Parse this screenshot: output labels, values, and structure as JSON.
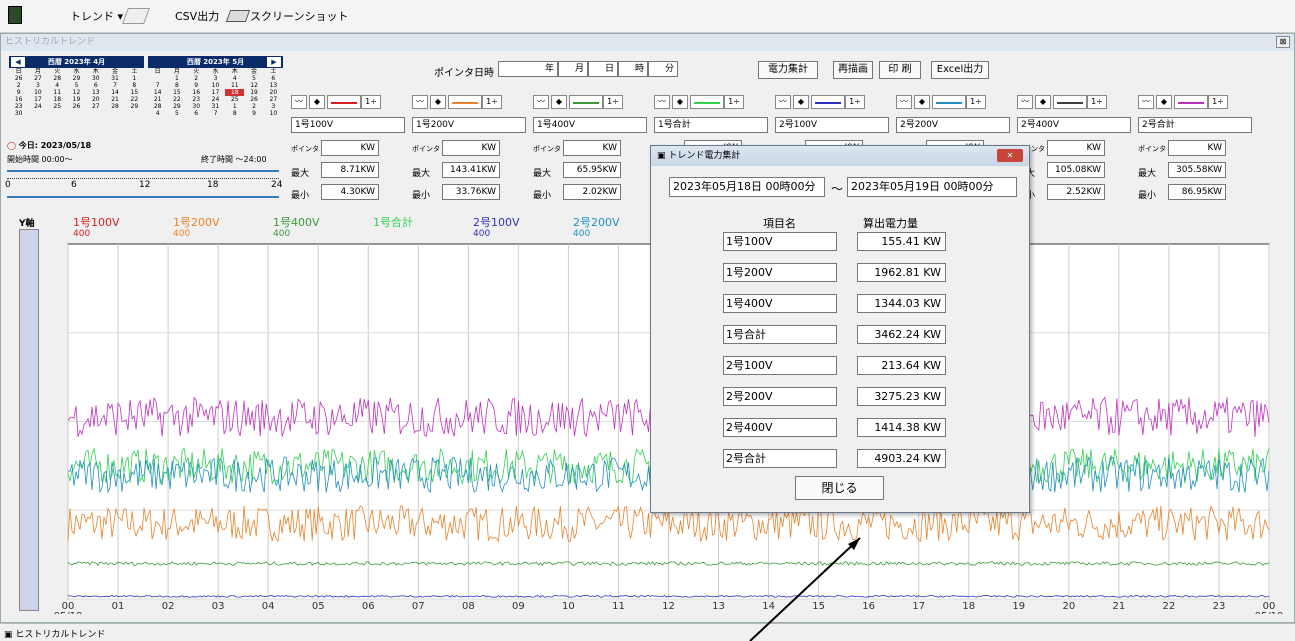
{
  "toolbar": {
    "trend": "トレンド ▾",
    "csv": "CSV出力",
    "screenshot": "スクリーンショット"
  },
  "window": {
    "title": "ヒストリカルトレンド",
    "close": "⊠"
  },
  "calendars": [
    {
      "title": "西暦 2023年 4月",
      "weekdays": [
        "日",
        "月",
        "火",
        "水",
        "木",
        "金",
        "土"
      ],
      "rows": [
        [
          "26",
          "27",
          "28",
          "29",
          "30",
          "31",
          "1"
        ],
        [
          "2",
          "3",
          "4",
          "5",
          "6",
          "7",
          "8"
        ],
        [
          "9",
          "10",
          "11",
          "12",
          "13",
          "14",
          "15"
        ],
        [
          "16",
          "17",
          "18",
          "19",
          "20",
          "21",
          "22"
        ],
        [
          "23",
          "24",
          "25",
          "26",
          "27",
          "28",
          "29"
        ],
        [
          "30",
          "",
          "",
          "",
          "",
          "",
          ""
        ]
      ]
    },
    {
      "title": "西暦 2023年 5月",
      "weekdays": [
        "日",
        "月",
        "火",
        "水",
        "木",
        "金",
        "土"
      ],
      "rows": [
        [
          "",
          "1",
          "2",
          "3",
          "4",
          "5",
          "6"
        ],
        [
          "7",
          "8",
          "9",
          "10",
          "11",
          "12",
          "13"
        ],
        [
          "14",
          "15",
          "16",
          "17",
          "18",
          "19",
          "20"
        ],
        [
          "21",
          "22",
          "23",
          "24",
          "25",
          "26",
          "27"
        ],
        [
          "28",
          "29",
          "30",
          "31",
          "1",
          "2",
          "3"
        ],
        [
          "4",
          "5",
          "6",
          "7",
          "8",
          "9",
          "10"
        ]
      ]
    }
  ],
  "today": "今日: 2023/05/18",
  "time": {
    "start": "開始時間 00:00〜",
    "end": "終了時間 〜24:00",
    "ticks": [
      "0",
      "6",
      "12",
      "18",
      "24"
    ]
  },
  "pointer": {
    "label": "ポインタ日時 :",
    "year": "年",
    "month": "月",
    "day": "日",
    "hour": "時",
    "minute": "分"
  },
  "buttons": {
    "power_total": "電力集計",
    "redraw": "再描画",
    "print": "印 刷",
    "excel": "Excel出力"
  },
  "panels": [
    {
      "name": "1号100V",
      "pointer_label": "ポインタ",
      "unit": "KW",
      "max_label": "最大",
      "max": "8.71KW",
      "min_label": "最小",
      "min": "4.30KW",
      "color": "#d42020"
    },
    {
      "name": "1号200V",
      "pointer_label": "ポインタ",
      "unit": "KW",
      "max_label": "最大",
      "max": "143.41KW",
      "min_label": "最小",
      "min": "33.76KW",
      "color": "#e8822a"
    },
    {
      "name": "1号400V",
      "pointer_label": "ポインタ",
      "unit": "KW",
      "max_label": "最大",
      "max": "65.95KW",
      "min_label": "最小",
      "min": "2.02KW",
      "color": "#3a9a3a"
    },
    {
      "name": "1号合計",
      "pointer_label": "ポインタ",
      "unit": "KW",
      "max_label": "最大",
      "max": "",
      "min_label": "最小",
      "min": "",
      "color": "#30d050"
    },
    {
      "name": "2号100V",
      "pointer_label": "ポインタ",
      "unit": "KW",
      "max_label": "最大",
      "max": "",
      "min_label": "最小",
      "min": "",
      "color": "#3030c0"
    },
    {
      "name": "2号200V",
      "pointer_label": "ポインタ",
      "unit": "KW",
      "max_label": "最大",
      "max": "",
      "min_label": "最小",
      "min": "",
      "color": "#2090c0"
    },
    {
      "name": "2号400V",
      "pointer_label": "ポインタ",
      "unit": "KW",
      "max_label": "最大",
      "max": "105.08KW",
      "min_label": "最小",
      "min": "2.52KW",
      "color": "#404040"
    },
    {
      "name": "2号合計",
      "pointer_label": "ポインタ",
      "unit": "KW",
      "max_label": "最大",
      "max": "305.58KW",
      "min_label": "最小",
      "min": "86.95KW",
      "color": "#c030c0"
    }
  ],
  "chart_data": {
    "type": "line",
    "yaxis_label": "Y軸",
    "legend": [
      {
        "name": "1号100V",
        "scale": "400",
        "color": "#d42020"
      },
      {
        "name": "1号200V",
        "scale": "400",
        "color": "#e8822a"
      },
      {
        "name": "1号400V",
        "scale": "400",
        "color": "#3a9a3a"
      },
      {
        "name": "1号合計",
        "scale": "",
        "color": "#30d050"
      },
      {
        "name": "2号100V",
        "scale": "400",
        "color": "#3030c0"
      },
      {
        "name": "2号200V",
        "scale": "400",
        "color": "#2090c0"
      }
    ],
    "x_ticks": [
      "00\n05/18",
      "01",
      "02",
      "03",
      "04",
      "05",
      "06",
      "07",
      "08",
      "09",
      "10",
      "11",
      "12",
      "13",
      "14",
      "15",
      "16",
      "17",
      "18",
      "19",
      "20",
      "21",
      "22",
      "23",
      "00\n05/19"
    ],
    "y_gridlabels": [
      "300",
      "200",
      "100",
      "0"
    ],
    "ylim": [
      0,
      400
    ]
  },
  "dialog": {
    "title": "トレンド電力集計",
    "close": "✕",
    "from": "2023年05月18日 00時00分",
    "tilde": "〜",
    "to": "2023年05月19日 00時00分",
    "col_name": "項目名",
    "col_value": "算出電力量",
    "rows": [
      {
        "name": "1号100V",
        "value": "155.41 KW"
      },
      {
        "name": "1号200V",
        "value": "1962.81 KW"
      },
      {
        "name": "1号400V",
        "value": "1344.03 KW"
      },
      {
        "name": "1号合計",
        "value": "3462.24 KW"
      },
      {
        "name": "2号100V",
        "value": "213.64 KW"
      },
      {
        "name": "2号200V",
        "value": "3275.23 KW"
      },
      {
        "name": "2号400V",
        "value": "1414.38 KW"
      },
      {
        "name": "2号合計",
        "value": "4903.24 KW"
      }
    ],
    "close_button": "閉じる"
  },
  "statusbar": {
    "tab": "ヒストリカルトレンド"
  }
}
